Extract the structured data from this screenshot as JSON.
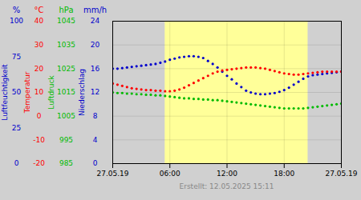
{
  "chart_data": {
    "type": "scatter",
    "footer": "Erstellt: 12.05.2025 15:11",
    "background": "#d0d0d0",
    "band": {
      "x": [
        5.5,
        20.5
      ],
      "color": "#ffff99"
    },
    "grid": true,
    "grid_color": "#000000",
    "x": [
      0,
      0.5,
      1,
      1.5,
      2,
      2.5,
      3,
      3.5,
      4,
      4.5,
      5,
      5.5,
      6,
      6.5,
      7,
      7.5,
      8,
      8.5,
      9,
      9.5,
      10,
      10.5,
      11,
      11.5,
      12,
      12.5,
      13,
      13.5,
      14,
      14.5,
      15,
      15.5,
      16,
      16.5,
      17,
      17.5,
      18,
      18.5,
      19,
      19.5,
      20,
      20.5,
      21,
      21.5,
      22,
      22.5,
      23,
      23.5,
      24
    ],
    "xlim": [
      0,
      24
    ],
    "xticks": [
      {
        "value": 0,
        "label": "27.05.19"
      },
      {
        "value": 6,
        "label": "06:00"
      },
      {
        "value": 12,
        "label": "12:00"
      },
      {
        "value": 18,
        "label": "18:00"
      },
      {
        "value": 24,
        "label": "27.05.19"
      }
    ],
    "ylim": [
      0,
      24
    ],
    "yticks": [
      0,
      4,
      8,
      12,
      16,
      20,
      24
    ],
    "y_axes": [
      {
        "label": "Luftfeuchtigkeit",
        "unit": "%",
        "color": "#0000cc",
        "lim": [
          0,
          100
        ],
        "ticks": [
          0,
          25,
          50,
          75,
          100
        ]
      },
      {
        "label": "Temperatur",
        "unit": "°C",
        "color": "#ff0000",
        "lim": [
          -20,
          40
        ],
        "ticks": [
          -20,
          -10,
          0,
          10,
          20,
          30,
          40
        ]
      },
      {
        "label": "Luftdruck",
        "unit": "hPa",
        "color": "#00bb00",
        "lim": [
          985,
          1045
        ],
        "ticks": [
          985,
          995,
          1005,
          1015,
          1025,
          1035,
          1045
        ]
      },
      {
        "label": "Niederschlag",
        "unit": "mm/h",
        "color": "#0000cc",
        "lim": [
          0,
          24
        ],
        "ticks": [
          0,
          4,
          8,
          12,
          16,
          20,
          24
        ]
      }
    ],
    "series": [
      {
        "color": "#0000cc",
        "marker": "dot",
        "values": [
          16.0,
          16.0,
          16.1,
          16.2,
          16.3,
          16.4,
          16.5,
          16.6,
          16.7,
          16.8,
          17.0,
          17.2,
          17.5,
          17.7,
          17.9,
          18.0,
          18.1,
          18.1,
          18.0,
          17.8,
          17.3,
          16.8,
          16.2,
          15.5,
          14.8,
          14.2,
          13.5,
          12.9,
          12.3,
          12.0,
          11.8,
          11.7,
          11.7,
          11.8,
          11.9,
          12.1,
          12.4,
          12.8,
          13.3,
          13.8,
          14.3,
          14.7,
          14.9,
          15.0,
          15.1,
          15.2,
          15.3,
          15.4,
          15.5
        ]
      },
      {
        "color": "#ff0000",
        "marker": "dot",
        "values": [
          13.5,
          13.3,
          13.1,
          12.9,
          12.7,
          12.6,
          12.5,
          12.4,
          12.4,
          12.3,
          12.3,
          12.2,
          12.2,
          12.3,
          12.5,
          12.8,
          13.2,
          13.6,
          14.0,
          14.4,
          14.8,
          15.2,
          15.5,
          15.7,
          15.8,
          15.9,
          16.0,
          16.1,
          16.2,
          16.2,
          16.2,
          16.1,
          16.0,
          15.8,
          15.6,
          15.4,
          15.2,
          15.1,
          15.0,
          15.0,
          15.1,
          15.2,
          15.3,
          15.4,
          15.5,
          15.5,
          15.5,
          15.5,
          15.5
        ]
      },
      {
        "color": "#00bb00",
        "marker": "dot",
        "values": [
          12.0,
          11.9,
          11.9,
          11.8,
          11.8,
          11.7,
          11.7,
          11.6,
          11.6,
          11.5,
          11.5,
          11.4,
          11.3,
          11.2,
          11.1,
          11.0,
          11.0,
          10.9,
          10.9,
          10.8,
          10.8,
          10.7,
          10.7,
          10.6,
          10.5,
          10.4,
          10.3,
          10.2,
          10.1,
          10.0,
          9.9,
          9.8,
          9.7,
          9.6,
          9.5,
          9.4,
          9.3,
          9.3,
          9.3,
          9.3,
          9.3,
          9.4,
          9.5,
          9.6,
          9.7,
          9.8,
          9.9,
          10.0,
          10.1
        ]
      }
    ]
  }
}
